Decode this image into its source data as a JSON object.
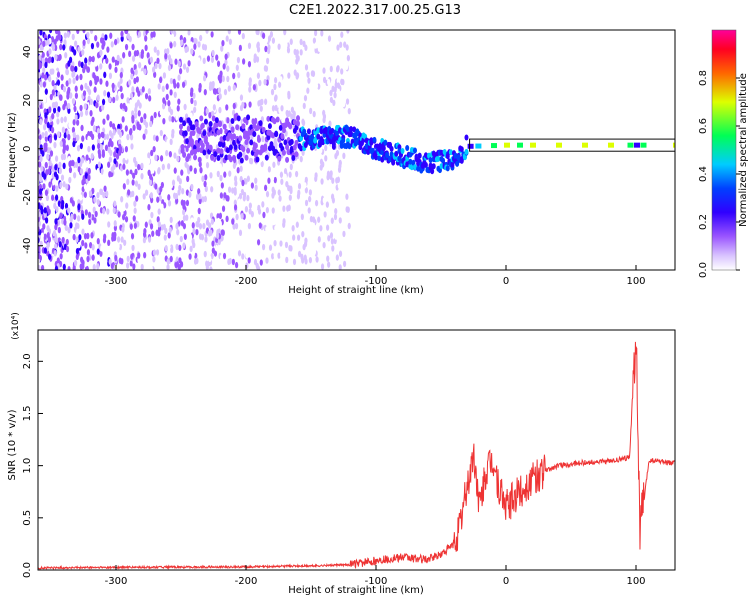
{
  "title": "C2E1.2022.317.00.25.G13",
  "chart_data": [
    {
      "type": "heatmap",
      "xlabel": "Height of straight line (km)",
      "ylabel": "Frequency (Hz)",
      "xlim": [
        -360,
        130
      ],
      "ylim": [
        -50,
        49
      ],
      "xticks": [
        -300,
        -200,
        -100,
        0,
        100
      ],
      "yticks": [
        -40,
        -20,
        0,
        20,
        40
      ],
      "colorbar": {
        "label": "Normalized spectral amplitude",
        "range": [
          0.0,
          1.0
        ],
        "ticks": [
          0.0,
          0.2,
          0.4,
          0.6,
          0.8
        ],
        "colors": [
          "#ffffff",
          "#d9c3ff",
          "#a060ff",
          "#5a00ff",
          "#0018ff",
          "#00ccff",
          "#00ff44",
          "#ffee00",
          "#ff0000",
          "#ff00aa"
        ]
      },
      "signal_band": [
        {
          "x": -160,
          "y": 4
        },
        {
          "x": -120,
          "y": 5
        },
        {
          "x": -100,
          "y": 0
        },
        {
          "x": -80,
          "y": -3
        },
        {
          "x": -60,
          "y": -6
        },
        {
          "x": -45,
          "y": -5
        },
        {
          "x": -35,
          "y": -3
        },
        {
          "x": -30,
          "y": 1
        },
        {
          "x": 0,
          "y": 1.5
        },
        {
          "x": 50,
          "y": 1.5
        },
        {
          "x": 100,
          "y": 1.5
        },
        {
          "x": 130,
          "y": 1.5
        }
      ]
    },
    {
      "type": "line",
      "xlabel": "Height of straight line (km)",
      "ylabel": "SNR (10 * v/v)",
      "multiplier": "(x10⁴)",
      "xlim": [
        -360,
        130
      ],
      "ylim": [
        0,
        2.3
      ],
      "xticks": [
        -300,
        -200,
        -100,
        0,
        100
      ],
      "yticks": [
        0.0,
        0.5,
        1.0,
        1.5,
        2.0
      ],
      "series": [
        {
          "color": "#ee3333",
          "x": [
            -360,
            -300,
            -200,
            -150,
            -120,
            -100,
            -80,
            -60,
            -50,
            -40,
            -35,
            -30,
            -25,
            -20,
            -15,
            -10,
            -5,
            0,
            10,
            20,
            30,
            40,
            60,
            80,
            95,
            100,
            103,
            110,
            120,
            130
          ],
          "y": [
            0.02,
            0.025,
            0.03,
            0.04,
            0.05,
            0.09,
            0.12,
            0.1,
            0.15,
            0.25,
            0.45,
            0.8,
            1.1,
            0.6,
            0.95,
            1.05,
            0.75,
            0.6,
            0.75,
            0.85,
            0.95,
            1.0,
            1.03,
            1.04,
            1.08,
            2.3,
            0.35,
            1.05,
            1.04,
            1.02
          ]
        }
      ]
    }
  ]
}
